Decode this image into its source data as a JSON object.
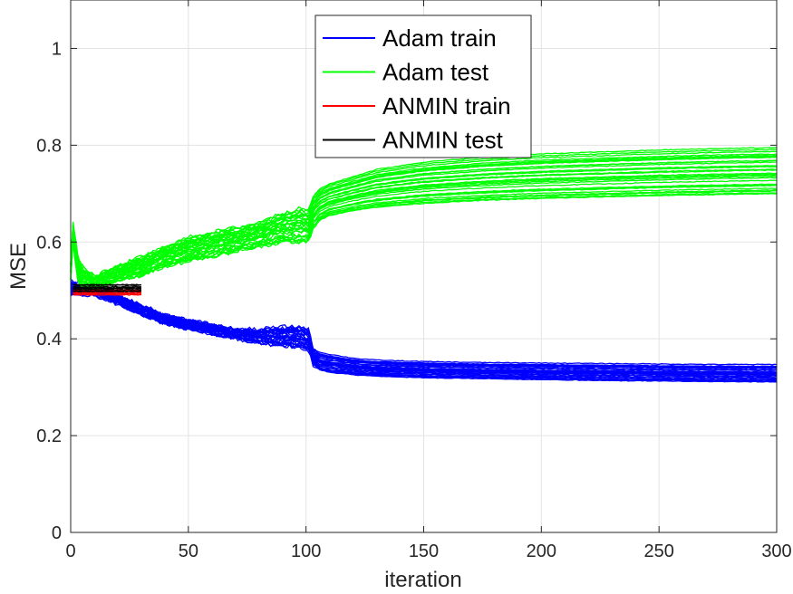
{
  "chart_data": {
    "type": "line",
    "title": "",
    "xlabel": "iteration",
    "ylabel": "MSE",
    "xlim": [
      0,
      300
    ],
    "ylim": [
      0,
      1.1
    ],
    "xticks": [
      0,
      50,
      100,
      150,
      200,
      250,
      300
    ],
    "yticks": [
      0,
      0.2,
      0.4,
      0.6,
      0.8,
      1
    ],
    "xtick_labels": [
      "0",
      "50",
      "100",
      "150",
      "200",
      "250",
      "300"
    ],
    "ytick_labels": [
      "0",
      "0.2",
      "0.4",
      "0.6",
      "0.8",
      "1"
    ],
    "grid": true,
    "legend_position": "top-center",
    "series": [
      {
        "name": "Adam train",
        "color": "#0000ff",
        "x": [
          0,
          5,
          10,
          15,
          20,
          30,
          40,
          50,
          60,
          70,
          80,
          90,
          98,
          101,
          103,
          106,
          110,
          120,
          130,
          150,
          175,
          200,
          225,
          250,
          275,
          300
        ],
        "low": [
          0.49,
          0.49,
          0.49,
          0.48,
          0.47,
          0.45,
          0.43,
          0.42,
          0.41,
          0.4,
          0.39,
          0.385,
          0.38,
          0.375,
          0.345,
          0.335,
          0.33,
          0.325,
          0.322,
          0.319,
          0.317,
          0.315,
          0.313,
          0.312,
          0.311,
          0.31
        ],
        "high": [
          0.52,
          0.51,
          0.51,
          0.5,
          0.49,
          0.47,
          0.45,
          0.44,
          0.43,
          0.42,
          0.42,
          0.425,
          0.425,
          0.42,
          0.38,
          0.372,
          0.368,
          0.36,
          0.356,
          0.353,
          0.351,
          0.35,
          0.349,
          0.348,
          0.347,
          0.347
        ],
        "runs": 30
      },
      {
        "name": "Adam test",
        "color": "#00ff00",
        "x": [
          0,
          1,
          3,
          5,
          10,
          15,
          20,
          30,
          40,
          50,
          60,
          70,
          80,
          90,
          98,
          101,
          103,
          106,
          110,
          120,
          130,
          150,
          175,
          200,
          225,
          250,
          275,
          300
        ],
        "low": [
          0.52,
          0.6,
          0.52,
          0.5,
          0.5,
          0.51,
          0.52,
          0.53,
          0.55,
          0.56,
          0.57,
          0.58,
          0.59,
          0.6,
          0.6,
          0.6,
          0.63,
          0.645,
          0.655,
          0.665,
          0.672,
          0.68,
          0.686,
          0.69,
          0.693,
          0.696,
          0.698,
          0.7
        ],
        "high": [
          0.56,
          0.64,
          0.57,
          0.55,
          0.53,
          0.54,
          0.55,
          0.57,
          0.59,
          0.61,
          0.62,
          0.63,
          0.64,
          0.66,
          0.67,
          0.665,
          0.695,
          0.71,
          0.72,
          0.735,
          0.75,
          0.765,
          0.775,
          0.782,
          0.786,
          0.79,
          0.793,
          0.795
        ],
        "runs": 30
      },
      {
        "name": "ANMIN train",
        "color": "#ff0000",
        "x": [
          1,
          30
        ],
        "low": [
          0.49,
          0.49
        ],
        "high": [
          0.502,
          0.502
        ],
        "runs": 6
      },
      {
        "name": "ANMIN test",
        "color": "#000000",
        "x": [
          1,
          30
        ],
        "low": [
          0.497,
          0.497
        ],
        "high": [
          0.512,
          0.512
        ],
        "runs": 8
      }
    ]
  }
}
